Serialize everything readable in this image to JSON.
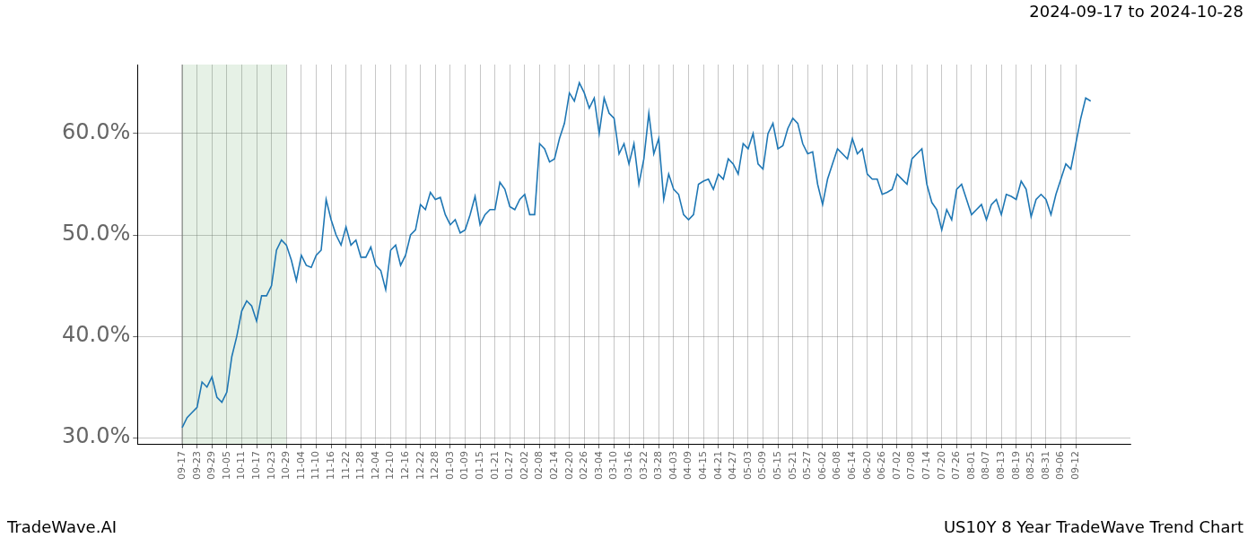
{
  "chart_data": {
    "type": "line",
    "title": "2024-09-17 to 2024-10-28",
    "footer_left": "TradeWave.AI",
    "footer_right": "US10Y 8 Year TradeWave Trend Chart",
    "highlight": [
      "09-17",
      "10-29"
    ],
    "categories": [
      null,
      null,
      null,
      null,
      null,
      null,
      null,
      null,
      null,
      "09-17",
      null,
      null,
      "09-23",
      null,
      null,
      "09-29",
      null,
      null,
      "10-05",
      null,
      null,
      "10-11",
      null,
      null,
      "10-17",
      null,
      null,
      "10-23",
      null,
      null,
      "10-29",
      null,
      null,
      "11-04",
      null,
      null,
      "11-10",
      null,
      null,
      "11-16",
      null,
      null,
      "11-22",
      null,
      null,
      "11-28",
      null,
      null,
      "12-04",
      null,
      null,
      "12-10",
      null,
      null,
      "12-16",
      null,
      null,
      "12-22",
      null,
      null,
      "12-28",
      null,
      null,
      "01-03",
      null,
      null,
      "01-09",
      null,
      null,
      "01-15",
      null,
      null,
      "01-21",
      null,
      null,
      "01-27",
      null,
      null,
      "02-02",
      null,
      null,
      "02-08",
      null,
      null,
      "02-14",
      null,
      null,
      "02-20",
      null,
      null,
      "02-26",
      null,
      null,
      "03-04",
      null,
      null,
      "03-10",
      null,
      null,
      "03-16",
      null,
      null,
      "03-22",
      null,
      null,
      "03-28",
      null,
      null,
      "04-03",
      null,
      null,
      "04-09",
      null,
      null,
      "04-15",
      null,
      null,
      "04-21",
      null,
      null,
      "04-27",
      null,
      null,
      "05-03",
      null,
      null,
      "05-09",
      null,
      null,
      "05-15",
      null,
      null,
      "05-21",
      null,
      null,
      "05-27",
      null,
      null,
      "06-02",
      null,
      null,
      "06-08",
      null,
      null,
      "06-14",
      null,
      null,
      "06-20",
      null,
      null,
      "06-26",
      null,
      null,
      "07-02",
      null,
      null,
      "07-08",
      null,
      null,
      "07-14",
      null,
      null,
      "07-20",
      null,
      null,
      "07-26",
      null,
      null,
      "08-01",
      null,
      null,
      "08-07",
      null,
      null,
      "08-13",
      null,
      null,
      "08-19",
      null,
      null,
      "08-25",
      null,
      null,
      "08-31",
      null,
      null,
      "09-06",
      null,
      null,
      "09-12",
      null,
      null,
      null,
      null,
      null,
      null,
      null,
      null,
      null,
      null,
      null
    ],
    "series": [
      {
        "name": "US10Y",
        "color": "#1f77b4",
        "values": [
          null,
          null,
          null,
          null,
          null,
          null,
          null,
          null,
          null,
          31,
          32,
          32.5,
          33,
          35.5,
          35,
          36,
          34,
          33.5,
          34.5,
          38,
          40,
          42.5,
          43.5,
          43,
          41.5,
          44,
          44,
          45,
          48.5,
          49.5,
          49,
          47.5,
          45.5,
          48,
          47,
          46.8,
          48,
          48.5,
          53.5,
          51.5,
          50,
          49,
          50.8,
          49,
          49.5,
          47.8,
          47.8,
          48.8,
          47,
          46.5,
          44.6,
          48.5,
          49,
          47,
          48,
          50,
          50.5,
          53,
          52.5,
          54.2,
          53.5,
          53.7,
          52,
          51,
          51.5,
          50.2,
          50.5,
          52,
          53.8,
          51,
          52,
          52.5,
          52.5,
          55.2,
          54.5,
          52.8,
          52.5,
          53.5,
          54,
          52,
          52,
          59,
          58.5,
          57.2,
          57.5,
          59.5,
          61,
          64,
          63.2,
          65,
          64,
          62.5,
          63.5,
          60,
          63.5,
          62,
          61.5,
          58,
          59,
          57,
          59,
          55,
          57.5,
          62,
          58,
          59.5,
          53.5,
          56,
          54.5,
          54,
          52,
          51.5,
          52,
          55,
          55.3,
          55.5,
          54.5,
          56,
          55.5,
          57.5,
          57,
          56,
          59,
          58.5,
          60,
          57,
          56.5,
          60,
          61,
          58.5,
          58.8,
          60.5,
          61.5,
          61,
          59,
          58,
          58.2,
          55,
          53,
          55.5,
          57,
          58.5,
          58,
          57.5,
          59.5,
          58,
          58.5,
          56,
          55.5,
          55.5,
          54,
          54.2,
          54.5,
          56,
          55.5,
          55,
          57.5,
          58,
          58.5,
          55,
          53.2,
          52.5,
          50.5,
          52.5,
          51.5,
          54.5,
          55,
          53.5,
          52,
          52.5,
          53,
          51.5,
          53,
          53.5,
          52,
          54,
          53.8,
          53.5,
          55.3,
          54.5,
          51.8,
          53.5,
          54,
          53.5,
          52,
          54,
          55.5,
          57,
          56.5,
          59,
          61.5,
          63.5,
          63.2,
          null,
          null,
          null,
          null,
          null,
          null,
          null,
          null
        ]
      }
    ],
    "ylim": [
      29.4,
      66.8
    ],
    "yticks": [
      {
        "value": 30,
        "label": "30.0%"
      },
      {
        "value": 40,
        "label": "40.0%"
      },
      {
        "value": 50,
        "label": "50.0%"
      },
      {
        "value": 60,
        "label": "60.0%"
      }
    ],
    "grid": true
  }
}
